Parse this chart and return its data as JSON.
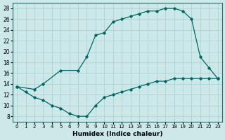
{
  "xlabel": "Humidex (Indice chaleur)",
  "bg_color": "#cce8e8",
  "line_color": "#006666",
  "grid_color": "#aacece",
  "xlim": [
    -0.5,
    23.5
  ],
  "ylim": [
    7,
    29
  ],
  "xticks": [
    0,
    1,
    2,
    3,
    4,
    5,
    6,
    7,
    8,
    9,
    10,
    11,
    12,
    13,
    14,
    15,
    16,
    17,
    18,
    19,
    20,
    21,
    22,
    23
  ],
  "yticks": [
    8,
    10,
    12,
    14,
    16,
    18,
    20,
    22,
    24,
    26,
    28
  ],
  "curve_bottom_x": [
    0,
    1,
    2,
    3,
    4,
    5,
    6,
    7,
    8,
    9,
    10,
    11,
    12,
    13,
    14,
    15,
    16,
    17,
    18,
    19,
    20,
    21,
    22,
    23
  ],
  "curve_bottom_y": [
    13.5,
    12.5,
    11.5,
    11.0,
    10.0,
    9.5,
    8.5,
    8.0,
    8.0,
    10.0,
    11.5,
    12.0,
    12.5,
    13.0,
    13.5,
    14.0,
    14.5,
    14.5,
    15.0,
    15.0,
    15.0,
    15.0,
    15.0,
    15.0
  ],
  "curve_top_x": [
    0,
    2,
    3,
    5,
    7,
    8,
    9,
    10,
    11,
    12,
    13,
    14,
    15,
    16,
    17,
    18,
    19,
    20,
    21,
    22,
    23
  ],
  "curve_top_y": [
    13.5,
    13.0,
    14.0,
    16.5,
    16.5,
    19.0,
    23.0,
    23.5,
    25.5,
    26.0,
    26.5,
    27.0,
    27.5,
    27.5,
    28.0,
    28.0,
    27.5,
    26.0,
    19.0,
    17.0,
    15.0
  ]
}
